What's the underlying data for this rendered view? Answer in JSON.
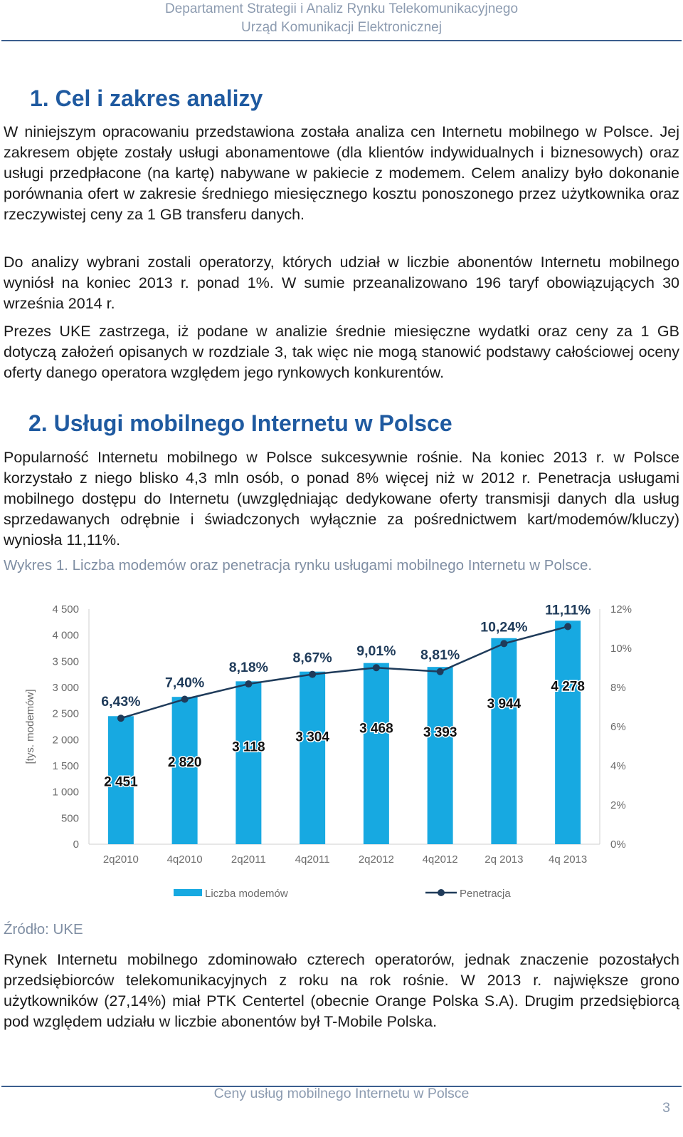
{
  "header": {
    "line1": "Departament Strategii i Analiz Rynku Telekomunikacyjnego",
    "line2": "Urząd Komunikacji Elektronicznej"
  },
  "section1": {
    "title": "1. Cel i zakres analizy",
    "p1": "W niniejszym opracowaniu przedstawiona została analiza cen Internetu mobilnego w Polsce. Jej zakresem objęte zostały usługi abonamentowe (dla klientów indywidualnych i biznesowych) oraz usługi przedpłacone (na kartę) nabywane w pakiecie z modemem. Celem analizy było dokonanie porównania ofert w zakresie średniego miesięcznego kosztu ponoszonego przez użytkownika oraz rzeczywistej ceny za 1 GB transferu danych.",
    "p2": "Do analizy wybrani zostali operatorzy, których udział w liczbie abonentów Internetu mobilnego wyniósł na koniec 2013 r. ponad 1%. W sumie przeanalizowano 196 taryf obowiązujących 30 września 2014 r.",
    "p3": "Prezes UKE zastrzega, iż podane w analizie średnie miesięczne wydatki oraz ceny za 1 GB dotyczą założeń opisanych w rozdziale 3, tak więc nie mogą stanowić podstawy całościowej oceny oferty danego operatora względem jego rynkowych konkurentów."
  },
  "section2": {
    "title": "2. Usługi mobilnego Internetu w Polsce",
    "p1": "Popularność Internetu mobilnego w Polsce sukcesywnie rośnie. Na koniec 2013 r. w Polsce korzystało z niego blisko 4,3 mln osób, o ponad 8% więcej niż w 2012 r. Penetracja usługami mobilnego dostępu do Internetu (uwzględniając dedykowane oferty transmisji danych dla usług sprzedawanych odrębnie i świadczonych wyłącznie za pośrednictwem kart/modemów/kluczy) wyniosła 11,11%.",
    "caption": "Wykres 1. Liczba modemów oraz penetracja rynku usługami mobilnego Internetu w Polsce.",
    "source": "Źródło: UKE",
    "p2": "Rynek Internetu mobilnego zdominowało czterech operatorów, jednak znaczenie pozostałych przedsiębiorców telekomunikacyjnych z roku na rok rośnie. W 2013 r. największe grono użytkowników (27,14%) miał PTK Centertel (obecnie Orange Polska S.A). Drugim przedsiębiorcą pod względem udziału w liczbie abonentów był T-Mobile Polska."
  },
  "footer": {
    "title": "Ceny usług mobilnego Internetu w Polsce",
    "page": "3"
  },
  "colors": {
    "bar": "#17a9e1",
    "line": "#1f3b5a",
    "heading": "#1f5aa0"
  },
  "chart_data": {
    "type": "bar",
    "title": "",
    "ylabel": "[tys. modemów]",
    "ylabel_right": "",
    "categories": [
      "2q2010",
      "4q2010",
      "2q2011",
      "4q2011",
      "2q2012",
      "4q2012",
      "2q 2013",
      "4q 2013"
    ],
    "ylim": [
      0,
      4500
    ],
    "y_ticks": [
      0,
      500,
      1000,
      1500,
      2000,
      2500,
      3000,
      3500,
      4000,
      4500
    ],
    "y_tick_labels": [
      "0",
      "500",
      "1 000",
      "1 500",
      "2 000",
      "2 500",
      "3 000",
      "3 500",
      "4 000",
      "4 500"
    ],
    "y2lim": [
      0,
      12
    ],
    "y2_ticks": [
      0,
      2,
      4,
      6,
      8,
      10,
      12
    ],
    "y2_tick_labels": [
      "0%",
      "2%",
      "4%",
      "6%",
      "8%",
      "10%",
      "12%"
    ],
    "series": [
      {
        "name": "Liczba modemów",
        "type": "bar",
        "axis": "left",
        "values": [
          2451,
          2820,
          3118,
          3304,
          3468,
          3393,
          3944,
          4278
        ],
        "labels": [
          "2 451",
          "2 820",
          "3 118",
          "3 304",
          "3 468",
          "3 393",
          "3 944",
          "4 278"
        ]
      },
      {
        "name": "Penetracja",
        "type": "line",
        "axis": "right",
        "values": [
          6.43,
          7.4,
          8.18,
          8.67,
          9.01,
          8.81,
          10.24,
          11.11
        ],
        "labels": [
          "6,43%",
          "7,40%",
          "8,18%",
          "8,67%",
          "9,01%",
          "8,81%",
          "10,24%",
          "11,11%"
        ]
      }
    ],
    "legend": "bottom",
    "grid": false
  }
}
